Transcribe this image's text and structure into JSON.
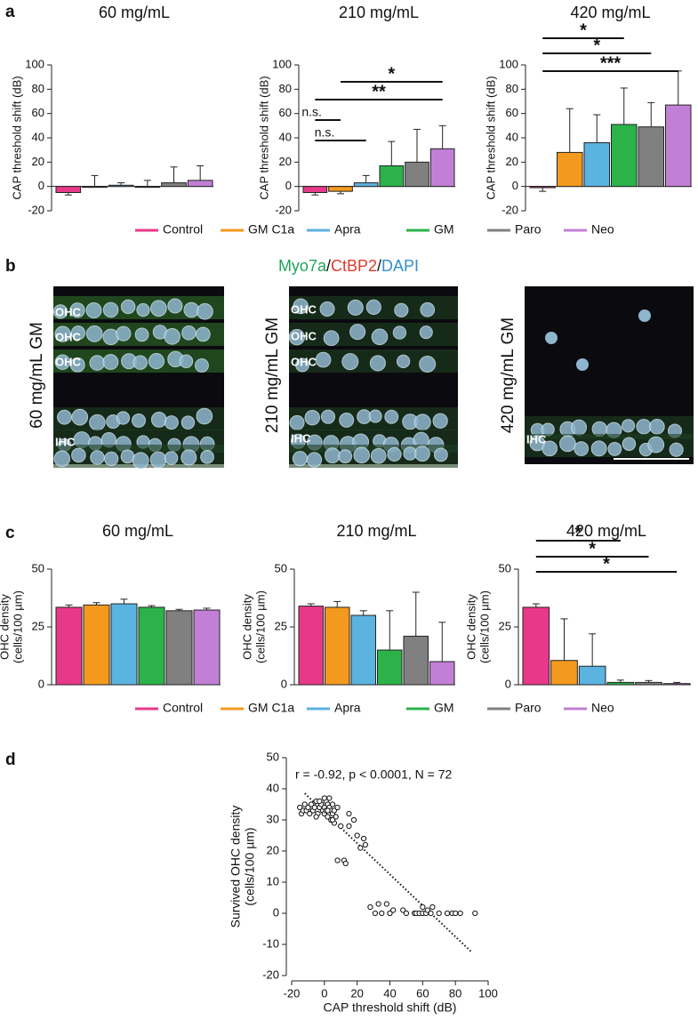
{
  "panel_labels": [
    "a",
    "b",
    "c",
    "d"
  ],
  "stain": [
    "Myo7a",
    "/",
    "CtBP2",
    "/",
    "DAPI"
  ],
  "micrographs": [
    {
      "label": "60 mg/mL GM",
      "rows": [
        "OHC",
        "OHC",
        "OHC",
        "IHC"
      ]
    },
    {
      "label": "210 mg/mL GM",
      "rows": [
        "OHC",
        "OHC",
        "OHC",
        "IHC"
      ]
    },
    {
      "label": "420 mg/mL GM",
      "rows": [
        "IHC"
      ]
    }
  ],
  "chart_data": [
    {
      "type": "bar",
      "title": "60 mg/mL",
      "ylabel": [
        "CAP threshold shift (dB)"
      ],
      "categories": [
        "Control",
        "GM C1a",
        "Apra",
        "GM",
        "Paro",
        "Neo"
      ],
      "colors": [
        "#e8388a",
        "#f39a1e",
        "#5bb3e0",
        "#2bb34a",
        "#808080",
        "#c27fd6"
      ],
      "values": [
        -5,
        0,
        1,
        0,
        3,
        5
      ],
      "errors": [
        2,
        9,
        2,
        5,
        13,
        12
      ],
      "ylim": [
        -20,
        100
      ],
      "yticks": [
        -20,
        0,
        20,
        40,
        60,
        80,
        100
      ],
      "annotations": []
    },
    {
      "type": "bar",
      "title": "210 mg/mL",
      "ylabel": [
        "CAP threshold shift (dB)"
      ],
      "categories": [
        "Control",
        "GM C1a",
        "Apra",
        "GM",
        "Paro",
        "Neo"
      ],
      "colors": [
        "#e8388a",
        "#f39a1e",
        "#5bb3e0",
        "#2bb34a",
        "#808080",
        "#c27fd6"
      ],
      "values": [
        -5,
        -4,
        3,
        17,
        20,
        31
      ],
      "errors": [
        2,
        2,
        6,
        20,
        27,
        19
      ],
      "ylim": [
        -20,
        100
      ],
      "yticks": [
        -20,
        0,
        20,
        40,
        60,
        80,
        100
      ],
      "annotations": [
        "*",
        "**",
        "n.s.",
        "n.s."
      ]
    },
    {
      "type": "bar",
      "title": "420 mg/mL",
      "ylabel": [
        "CAP threshold shift (dB)"
      ],
      "categories": [
        "Control",
        "GM C1a",
        "Apra",
        "GM",
        "Paro",
        "Neo"
      ],
      "colors": [
        "#e8388a",
        "#f39a1e",
        "#5bb3e0",
        "#2bb34a",
        "#808080",
        "#c27fd6"
      ],
      "values": [
        -1,
        28,
        36,
        51,
        49,
        67
      ],
      "errors": [
        3,
        36,
        23,
        30,
        20,
        28
      ],
      "ylim": [
        -20,
        100
      ],
      "yticks": [
        -20,
        0,
        20,
        40,
        60,
        80,
        100
      ],
      "annotations": [
        "*",
        "*",
        "***"
      ]
    },
    {
      "type": "bar",
      "title": "60 mg/mL",
      "ylabel": [
        "OHC density",
        "(cells/100 µm)"
      ],
      "categories": [
        "Control",
        "GM C1a",
        "Apra",
        "GM",
        "Paro",
        "Neo"
      ],
      "colors": [
        "#e8388a",
        "#f39a1e",
        "#5bb3e0",
        "#2bb34a",
        "#808080",
        "#c27fd6"
      ],
      "values": [
        33.5,
        34.5,
        35,
        33.5,
        32,
        32.3
      ],
      "errors": [
        1,
        1,
        2,
        0.7,
        0.6,
        0.8
      ],
      "ylim": [
        0,
        50
      ],
      "yticks": [
        0,
        25,
        50
      ],
      "annotations": []
    },
    {
      "type": "bar",
      "title": "210 mg/mL",
      "ylabel": [
        "OHC density",
        "(cells/100 µm)"
      ],
      "categories": [
        "Control",
        "GM C1a",
        "Apra",
        "GM",
        "Paro",
        "Neo"
      ],
      "colors": [
        "#e8388a",
        "#f39a1e",
        "#5bb3e0",
        "#2bb34a",
        "#808080",
        "#c27fd6"
      ],
      "values": [
        34,
        33.5,
        30,
        15,
        21,
        10
      ],
      "errors": [
        1,
        2.5,
        2,
        17,
        19,
        17
      ],
      "ylim": [
        0,
        50
      ],
      "yticks": [
        0,
        25,
        50
      ],
      "annotations": []
    },
    {
      "type": "bar",
      "title": "420 mg/mL",
      "ylabel": [
        "OHC density",
        "(cells/100 µm)"
      ],
      "categories": [
        "Control",
        "GM C1a",
        "Apra",
        "GM",
        "Paro",
        "Neo"
      ],
      "colors": [
        "#e8388a",
        "#f39a1e",
        "#5bb3e0",
        "#2bb34a",
        "#808080",
        "#c27fd6"
      ],
      "values": [
        33.5,
        10.5,
        8,
        1,
        1,
        0.5
      ],
      "errors": [
        1.5,
        18,
        14,
        1,
        0.8,
        0.5
      ],
      "ylim": [
        0,
        50
      ],
      "yticks": [
        0,
        25,
        50
      ],
      "annotations": [
        "*",
        "*",
        "*"
      ]
    },
    {
      "type": "scatter",
      "annotation": "r = -0.92, p < 0.0001, N = 72",
      "xlabel": "CAP threshold shift (dB)",
      "ylabel": [
        "Survived OHC density",
        "(cells/100 µm)"
      ],
      "xlim": [
        -20,
        100
      ],
      "xticks": [
        -20,
        0,
        20,
        40,
        60,
        80,
        100
      ],
      "ylim": [
        -20,
        50
      ],
      "yticks": [
        -20,
        -10,
        0,
        10,
        20,
        30,
        40,
        50
      ],
      "x": [
        -15,
        -14,
        -13,
        -12,
        -11,
        -10,
        -9,
        -8,
        -7,
        -6,
        -5,
        -4,
        -3,
        -2,
        -1,
        0,
        0,
        1,
        1,
        2,
        2,
        3,
        3,
        4,
        4,
        5,
        5,
        6,
        7,
        8,
        -5,
        -3,
        0,
        2,
        6,
        8,
        12,
        13,
        15,
        18,
        20,
        22,
        24,
        25,
        15,
        10,
        5,
        28,
        33,
        35,
        38,
        40,
        40,
        42,
        48,
        50,
        55,
        56,
        58,
        60,
        60,
        62,
        63,
        65,
        66,
        70,
        75,
        78,
        80,
        83,
        92,
        31
      ],
      "y": [
        34,
        32,
        33,
        35,
        33,
        34,
        32,
        35,
        33,
        34,
        36,
        32,
        34,
        35,
        33,
        34,
        32,
        36,
        33,
        35,
        31,
        34,
        37,
        33,
        30,
        35,
        32,
        33,
        31,
        34,
        31,
        36,
        37,
        33,
        29,
        17,
        17,
        16,
        28,
        30,
        25,
        21,
        24,
        22,
        32,
        28,
        30,
        2,
        3,
        0,
        3,
        0,
        0,
        1,
        1,
        0,
        0,
        0,
        0,
        0,
        2,
        0,
        1,
        0,
        2,
        0,
        0,
        0,
        0,
        0,
        0,
        0
      ],
      "trendline": {
        "x": [
          -12,
          90
        ],
        "y": [
          38.5,
          -12.5
        ]
      }
    }
  ]
}
